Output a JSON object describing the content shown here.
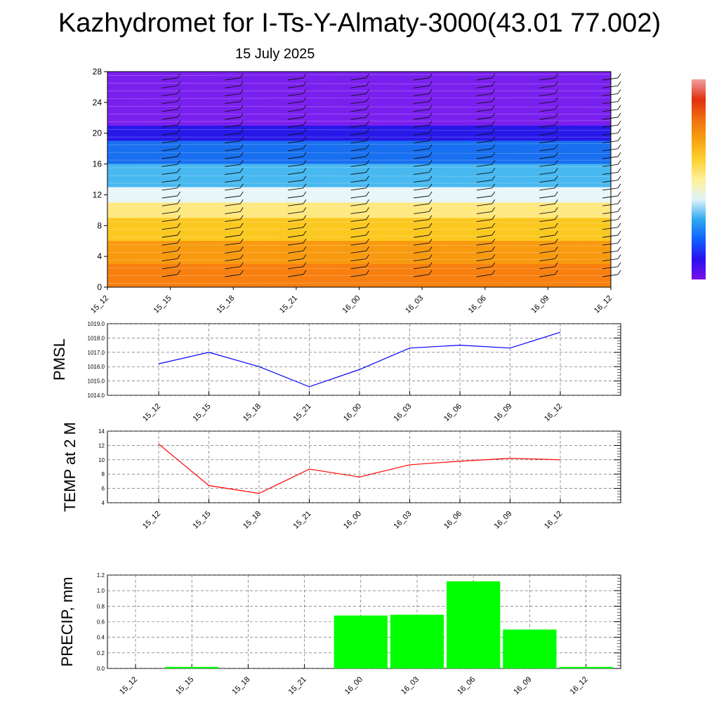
{
  "header": {
    "title": "Kazhydromet for I-Ts-Y-Almaty-3000(43.01 77.002)",
    "date": "15 July 2025"
  },
  "chart_data": [
    {
      "type": "heatmap",
      "name": "cross-section",
      "categories": [
        "15_12",
        "15_15",
        "15_18",
        "15_21",
        "16_00",
        "16_03",
        "16_06",
        "16_09",
        "16_12"
      ],
      "y_ticks": [
        "0",
        "4",
        "8",
        "12",
        "16",
        "20",
        "24",
        "28"
      ],
      "ylim": [
        0,
        28
      ],
      "colorbar": [
        "#7a10e8",
        "#2a10f0",
        "#1060ff",
        "#30a8f0",
        "#e0f4f8",
        "#fff09a",
        "#fcd030",
        "#f8a010",
        "#f07010",
        "#e03010",
        "#f0a0a0"
      ],
      "bands": [
        {
          "from": 0,
          "to": 3,
          "color": "#f88010"
        },
        {
          "from": 3,
          "to": 6,
          "color": "#f89a10"
        },
        {
          "from": 6,
          "to": 9,
          "color": "#fbc820"
        },
        {
          "from": 9,
          "to": 11,
          "color": "#fee880"
        },
        {
          "from": 11,
          "to": 13,
          "color": "#e8f6f8"
        },
        {
          "from": 13,
          "to": 16,
          "color": "#48b8f0"
        },
        {
          "from": 16,
          "to": 19,
          "color": "#1870f0"
        },
        {
          "from": 19,
          "to": 21,
          "color": "#2818e8"
        },
        {
          "from": 21,
          "to": 28,
          "color": "#7a20ee"
        }
      ]
    },
    {
      "type": "line",
      "name": "pmsl",
      "ylabel": "PMSL",
      "categories": [
        "15_12",
        "15_15",
        "15_18",
        "15_21",
        "16_00",
        "16_03",
        "16_06",
        "16_09",
        "16_12"
      ],
      "values": [
        1016.2,
        1017.0,
        1016.0,
        1014.6,
        1015.8,
        1017.3,
        1017.5,
        1017.3,
        1018.4
      ],
      "ylim": [
        1014.0,
        1019.0
      ],
      "y_ticks": [
        "1014.0",
        "1015.0",
        "1016.0",
        "1017.0",
        "1018.0",
        "1019.0"
      ],
      "color": "#0000ff"
    },
    {
      "type": "line",
      "name": "temp",
      "ylabel": "TEMP at 2 M",
      "categories": [
        "15_12",
        "15_15",
        "15_18",
        "15_21",
        "16_00",
        "16_03",
        "16_06",
        "16_09",
        "16_12"
      ],
      "values": [
        12.2,
        6.4,
        5.3,
        8.7,
        7.6,
        9.3,
        9.8,
        10.2,
        10.0
      ],
      "ylim": [
        4,
        14
      ],
      "y_ticks": [
        "4",
        "6",
        "8",
        "10",
        "12",
        "14"
      ],
      "color": "#ff0000"
    },
    {
      "type": "bar",
      "name": "precip",
      "ylabel": "PRECIP, mm",
      "categories": [
        "15_12",
        "15_15",
        "15_18",
        "15_21",
        "16_00",
        "16_03",
        "16_06",
        "16_09",
        "16_12"
      ],
      "values": [
        0.0,
        0.02,
        0.0,
        0.0,
        0.68,
        0.69,
        1.12,
        0.5,
        0.02
      ],
      "ylim": [
        0.0,
        1.2
      ],
      "y_ticks": [
        "0.0",
        "0.2",
        "0.4",
        "0.6",
        "0.8",
        "1.0",
        "1.2"
      ],
      "color": "#00ff00"
    }
  ]
}
